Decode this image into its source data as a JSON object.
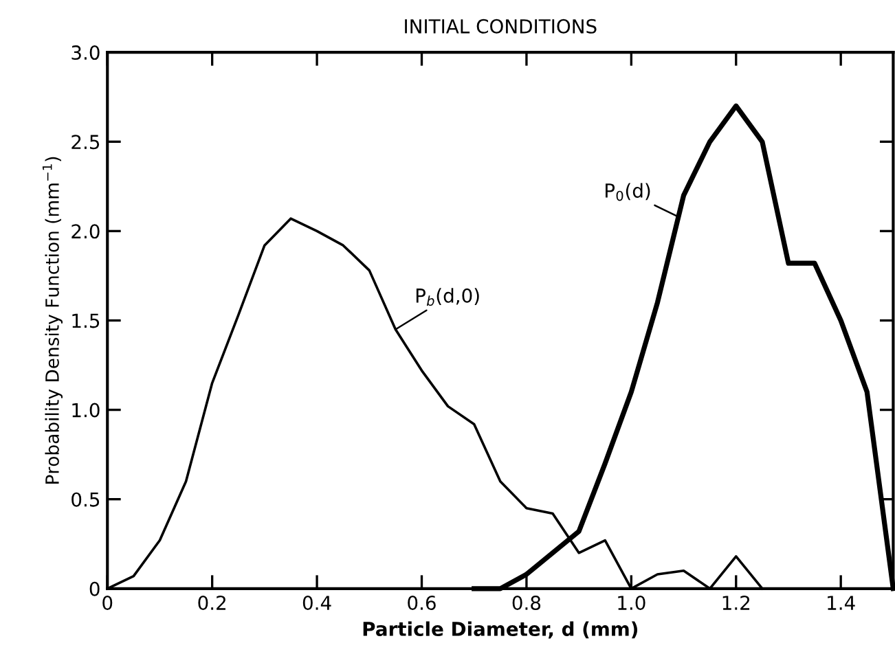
{
  "chart_data": {
    "type": "line",
    "title": "INITIAL CONDITIONS",
    "xlabel": "Particle Diameter, d (mm)",
    "ylabel": "Probability Density Function (mm$^{−1}$)",
    "series": [
      {
        "name": "P$_{b}$(d,0)",
        "color": "#000000",
        "x": [
          0,
          0.05,
          0.1,
          0.15,
          0.2,
          0.25,
          0.3,
          0.35,
          0.4,
          0.45,
          0.5,
          0.55,
          0.6,
          0.65,
          0.7,
          0.75,
          0.8,
          0.85,
          0.9,
          0.95,
          1.0,
          1.05,
          1.1,
          1.15,
          1.2,
          1.25
        ],
        "values": [
          0,
          0.07,
          0.27,
          0.6,
          1.15,
          1.53,
          1.92,
          2.07,
          2.0,
          1.92,
          1.78,
          1.45,
          1.22,
          1.02,
          0.92,
          0.6,
          0.45,
          0.42,
          0.2,
          0.27,
          0,
          0.08,
          0.1,
          0,
          0.18,
          0
        ]
      },
      {
        "name": "P$_{0}$(d)",
        "color": "#000000",
        "x": [
          0.7,
          0.75,
          0.8,
          0.85,
          0.9,
          0.95,
          1.0,
          1.05,
          1.1,
          1.15,
          1.2,
          1.25,
          1.3,
          1.35,
          1.4,
          1.45,
          1.5
        ],
        "values": [
          0,
          0,
          0.08,
          0.2,
          0.32,
          0.7,
          1.1,
          1.6,
          2.2,
          2.5,
          2.7,
          2.5,
          1.82,
          1.82,
          1.5,
          1.1,
          0
        ]
      }
    ],
    "xlim": [
      0,
      1.5
    ],
    "ylim": [
      0,
      3.0
    ],
    "xticks": [
      0,
      0.2,
      0.4,
      0.6,
      0.8,
      {
        "value": 1,
        "label": "1.0"
      },
      1.2,
      1.4
    ],
    "yticks": [
      0,
      0.5,
      {
        "value": 1,
        "label": "1.0"
      },
      1.5,
      {
        "value": 2,
        "label": "2.0"
      },
      2.5,
      {
        "value": 3,
        "label": "3.0"
      }
    ],
    "grid": false,
    "legend": false,
    "marker": "none",
    "line_style": "solid"
  }
}
